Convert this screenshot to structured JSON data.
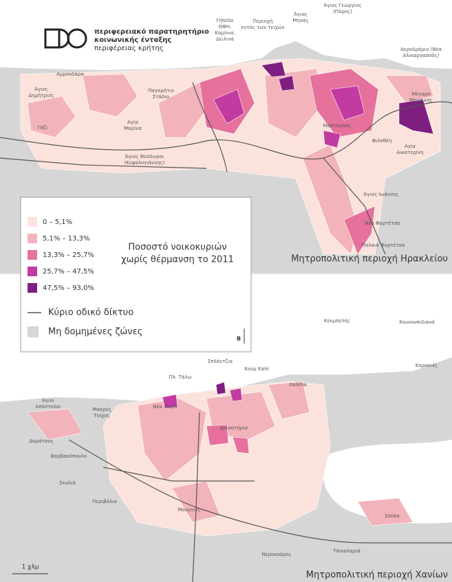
{
  "header": {
    "lines": [
      "περιφερειακό παρατηρητήριο",
      "κοινωνικής ένταξης",
      "περιφέρειας κρήτης"
    ]
  },
  "legend": {
    "title": [
      "Ποσοστό νοικοκυριών",
      "χωρίς θέρμανση  το 2011"
    ],
    "items": [
      {
        "label": "0 – 5,1%",
        "color": "#fbe3dc"
      },
      {
        "label": "5,1% – 13,3%",
        "color": "#f3b3ba"
      },
      {
        "label": "13,3% – 25,7%",
        "color": "#e5719c"
      },
      {
        "label": "25,7% – 47,5%",
        "color": "#c23ba0"
      },
      {
        "label": "47,5% – 93,0%",
        "color": "#7e1e80"
      }
    ],
    "road": "Κύριο οδικό δίκτυο",
    "unbuilt": "Μη δομημένες ζώνες",
    "north": "Β"
  },
  "heraklion": {
    "title": "Μητροπολιτική περιοχή Ηρακλείου",
    "places": [
      [
        "Γήπεδο",
        "ΟΦΗ,",
        "Καμίνια,",
        "Δειλινά"
      ],
      [
        "Περιοχή",
        "εντός των τειχών"
      ],
      [
        "Άγιος",
        "Μηνάς"
      ],
      [
        "Άγιος Γεώργιος",
        "(Πόρος)"
      ],
      [
        "Αεροδρόμιο (Νέα",
        "Αλικαρνασσός)"
      ],
      [
        "Αμμουδάρα"
      ],
      [
        "Άγιος",
        "Δημήτριος"
      ],
      [
        "Παγκρήτιο",
        "Στάδιο"
      ],
      [
        "Γάζι"
      ],
      [
        "Αγία",
        "Μαρίνα"
      ],
      [
        "Άγιος Θεόδωροι",
        "(Κεφαλογιάννης)"
      ],
      [
        "Μασταμπάς"
      ],
      [
        "Μέγαρο",
        "Μουσικής"
      ],
      [
        "Φιλοθέη"
      ],
      [
        "Αγία",
        "Αικατερίνη"
      ],
      [
        "Άγιος Ιωάννης"
      ],
      [
        "Νέα Φορτέτσα"
      ],
      [
        "Παλαιά Φορτέτσα"
      ]
    ]
  },
  "chania": {
    "title": "Μητροπολιτική περιοχή Χανίων",
    "scale": "1 χλμ",
    "places": [
      [
        "Σπλάντζια"
      ],
      [
        "Κούμ Καπί"
      ],
      [
        "Πλ. Τάλω"
      ],
      [
        "Κουμπελής"
      ],
      [
        "Κουνουπιδιανά"
      ],
      [
        "Κορακιές"
      ],
      [
        "Χαλέπα"
      ],
      [
        "Άγιοι",
        "Απόστολοι"
      ],
      [
        "Μακρύς",
        "Τοίχος"
      ],
      [
        "Νέα Χώρα"
      ],
      [
        "Δικαστήρια"
      ],
      [
        "Δαράτσος"
      ],
      [
        "Βαρβακόπουλο"
      ],
      [
        "Σκολιά"
      ],
      [
        "Περιβόλια"
      ],
      [
        "Μουρνιές"
      ],
      [
        "Νεροκούρος"
      ],
      [
        "Σούδα"
      ],
      [
        "Τσικαλαριά"
      ]
    ]
  }
}
